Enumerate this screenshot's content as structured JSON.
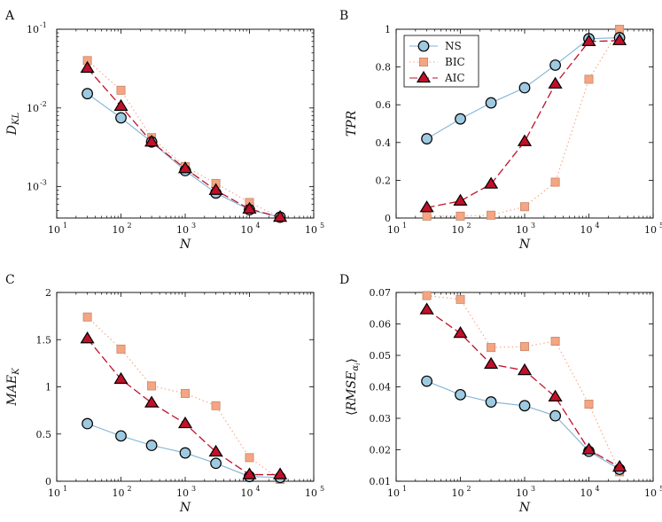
{
  "colors": {
    "NS": "#9ecae1",
    "BIC": "#f4a582",
    "AIC": "#c0102a",
    "NS_line": "#7fb3d5",
    "BIC_line": "#f4a582",
    "AIC_line": "#c0102a"
  },
  "chart_data": [
    {
      "label": "A",
      "type": "line",
      "ylabel_main": "D",
      "ylabel_sub": "KL",
      "xlabel": "N",
      "xscale": "log",
      "yscale": "log",
      "xlim": [
        10,
        100000
      ],
      "ylim": [
        0.0004,
        0.1
      ],
      "x_ticks": [
        {
          "base": "10",
          "exp": "1"
        },
        {
          "base": "10",
          "exp": "2"
        },
        {
          "base": "10",
          "exp": "3"
        },
        {
          "base": "10",
          "exp": "4"
        },
        {
          "base": "10",
          "exp": "5"
        }
      ],
      "y_ticks": [
        {
          "v": 0.001,
          "base": "10",
          "exp": "-3"
        },
        {
          "v": 0.01,
          "base": "10",
          "exp": "-2"
        },
        {
          "v": 0.1,
          "base": "10",
          "exp": "-1"
        }
      ],
      "x": [
        30,
        100,
        300,
        1000,
        3000,
        10000,
        30000
      ],
      "series": [
        {
          "name": "NS",
          "values": [
            0.0152,
            0.0075,
            0.0037,
            0.0016,
            0.00083,
            0.00051,
            0.00041
          ]
        },
        {
          "name": "BIC",
          "values": [
            0.04,
            0.0168,
            0.0042,
            0.0018,
            0.0011,
            0.00063,
            0.00041
          ]
        },
        {
          "name": "AIC",
          "values": [
            0.032,
            0.0105,
            0.0037,
            0.0017,
            0.0009,
            0.00052,
            0.00041
          ]
        }
      ]
    },
    {
      "label": "B",
      "type": "line",
      "ylabel_main": "TPR",
      "xlabel": "N",
      "xscale": "log",
      "yscale": "linear",
      "xlim": [
        10,
        100000
      ],
      "ylim": [
        0,
        1
      ],
      "x_ticks": [
        {
          "base": "10",
          "exp": "1"
        },
        {
          "base": "10",
          "exp": "2"
        },
        {
          "base": "10",
          "exp": "3"
        },
        {
          "base": "10",
          "exp": "4"
        },
        {
          "base": "10",
          "exp": "5"
        }
      ],
      "y_ticks": [
        {
          "v": 0,
          "t": "0"
        },
        {
          "v": 0.2,
          "t": "0.2"
        },
        {
          "v": 0.4,
          "t": "0.4"
        },
        {
          "v": 0.6,
          "t": "0.6"
        },
        {
          "v": 0.8,
          "t": "0.8"
        },
        {
          "v": 1,
          "t": "1"
        }
      ],
      "legend": {
        "position": "top-left",
        "entries": [
          "NS",
          "BIC",
          "AIC"
        ]
      },
      "x": [
        30,
        100,
        300,
        1000,
        3000,
        10000,
        30000
      ],
      "series": [
        {
          "name": "NS",
          "values": [
            0.42,
            0.525,
            0.61,
            0.69,
            0.81,
            0.95,
            0.955
          ]
        },
        {
          "name": "BIC",
          "values": [
            0.01,
            0.01,
            0.015,
            0.06,
            0.19,
            0.735,
            1.0
          ]
        },
        {
          "name": "AIC",
          "values": [
            0.055,
            0.09,
            0.18,
            0.405,
            0.71,
            0.935,
            0.94
          ]
        }
      ]
    },
    {
      "label": "C",
      "type": "line",
      "ylabel_main": "MAE",
      "ylabel_sub": "K",
      "xlabel": "N",
      "xscale": "log",
      "yscale": "linear",
      "xlim": [
        10,
        100000
      ],
      "ylim": [
        0,
        2
      ],
      "x_ticks": [
        {
          "base": "10",
          "exp": "1"
        },
        {
          "base": "10",
          "exp": "2"
        },
        {
          "base": "10",
          "exp": "3"
        },
        {
          "base": "10",
          "exp": "4"
        },
        {
          "base": "10",
          "exp": "5"
        }
      ],
      "y_ticks": [
        {
          "v": 0,
          "t": "0"
        },
        {
          "v": 0.5,
          "t": "0.5"
        },
        {
          "v": 1,
          "t": "1"
        },
        {
          "v": 1.5,
          "t": "1.5"
        },
        {
          "v": 2,
          "t": "2"
        }
      ],
      "x": [
        30,
        100,
        300,
        1000,
        3000,
        10000,
        30000
      ],
      "series": [
        {
          "name": "NS",
          "values": [
            0.61,
            0.48,
            0.38,
            0.3,
            0.19,
            0.05,
            0.04
          ]
        },
        {
          "name": "BIC",
          "values": [
            1.74,
            1.4,
            1.01,
            0.93,
            0.8,
            0.25,
            0.02
          ]
        },
        {
          "name": "AIC",
          "values": [
            1.51,
            1.08,
            0.83,
            0.61,
            0.31,
            0.07,
            0.07
          ]
        }
      ]
    },
    {
      "label": "D",
      "type": "line",
      "ylabel_main": "RMSE",
      "ylabel_sub": "α",
      "ylabel_subsub": "i",
      "ylabel_brackets": true,
      "xlabel": "N",
      "xscale": "log",
      "yscale": "linear",
      "xlim": [
        10,
        100000
      ],
      "ylim": [
        0.01,
        0.07
      ],
      "x_ticks": [
        {
          "base": "10",
          "exp": "1"
        },
        {
          "base": "10",
          "exp": "2"
        },
        {
          "base": "10",
          "exp": "3"
        },
        {
          "base": "10",
          "exp": "4"
        },
        {
          "base": "10",
          "exp": "5"
        }
      ],
      "y_ticks": [
        {
          "v": 0.01,
          "t": "0.01"
        },
        {
          "v": 0.02,
          "t": "0.02"
        },
        {
          "v": 0.03,
          "t": "0.03"
        },
        {
          "v": 0.04,
          "t": "0.04"
        },
        {
          "v": 0.05,
          "t": "0.05"
        },
        {
          "v": 0.06,
          "t": "0.06"
        },
        {
          "v": 0.07,
          "t": "0.07"
        }
      ],
      "x": [
        30,
        100,
        300,
        1000,
        3000,
        10000,
        30000
      ],
      "series": [
        {
          "name": "NS",
          "values": [
            0.0418,
            0.0375,
            0.0352,
            0.034,
            0.0308,
            0.0195,
            0.0138
          ]
        },
        {
          "name": "BIC",
          "values": [
            0.069,
            0.0678,
            0.0525,
            0.0528,
            0.0545,
            0.0345,
            0.013
          ]
        },
        {
          "name": "AIC",
          "values": [
            0.0645,
            0.057,
            0.0472,
            0.0452,
            0.0368,
            0.02,
            0.0145
          ]
        }
      ]
    }
  ]
}
